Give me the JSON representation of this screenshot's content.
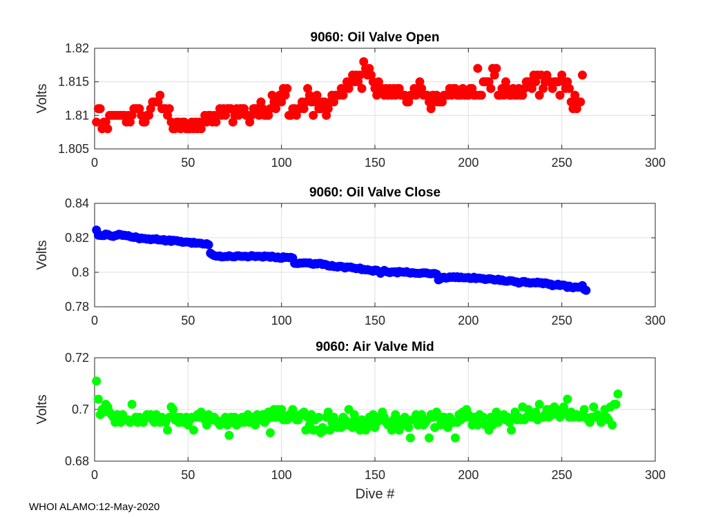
{
  "footer": "WHOI ALAMO:12-May-2020",
  "chart_data": [
    {
      "type": "scatter",
      "title": "9060: Oil Valve Open",
      "ylabel": "Volts",
      "xlabel": "",
      "xlim": [
        0,
        300
      ],
      "ylim": [
        1.805,
        1.82
      ],
      "xticks": [
        0,
        50,
        100,
        150,
        200,
        250,
        300
      ],
      "yticks": [
        1.805,
        1.81,
        1.815,
        1.82
      ],
      "ytick_labels": [
        "1.805",
        "1.81",
        "1.815",
        "1.82"
      ],
      "color": "#ff0000",
      "series": [
        {
          "name": "Oil Valve Open",
          "y": [
            1.809,
            1.811,
            1.811,
            1.808,
            1.809,
            1.809,
            1.808,
            1.81,
            1.81,
            1.81,
            1.81,
            1.81,
            1.81,
            1.81,
            1.81,
            1.81,
            1.809,
            1.81,
            1.809,
            1.81,
            1.811,
            1.811,
            1.811,
            1.811,
            1.81,
            1.809,
            1.809,
            1.81,
            1.81,
            1.811,
            1.812,
            1.812,
            1.812,
            1.812,
            1.813,
            1.811,
            1.811,
            1.811,
            1.81,
            1.811,
            1.809,
            1.808,
            1.808,
            1.809,
            1.809,
            1.808,
            1.809,
            1.809,
            1.808,
            1.808,
            1.808,
            1.809,
            1.808,
            1.809,
            1.808,
            1.809,
            1.808,
            1.809,
            1.81,
            1.809,
            1.81,
            1.81,
            1.809,
            1.81,
            1.809,
            1.81,
            1.811,
            1.81,
            1.811,
            1.81,
            1.811,
            1.811,
            1.811,
            1.809,
            1.81,
            1.811,
            1.81,
            1.811,
            1.811,
            1.811,
            1.81,
            1.81,
            1.809,
            1.81,
            1.811,
            1.811,
            1.811,
            1.81,
            1.812,
            1.811,
            1.81,
            1.81,
            1.81,
            1.811,
            1.813,
            1.812,
            1.811,
            1.812,
            1.813,
            1.812,
            1.814,
            1.813,
            1.814,
            1.81,
            1.81,
            1.811,
            1.811,
            1.81,
            1.811,
            1.811,
            1.812,
            1.811,
            1.812,
            1.814,
            1.813,
            1.812,
            1.81,
            1.812,
            1.813,
            1.811,
            1.811,
            1.812,
            1.812,
            1.81,
            1.811,
            1.812,
            1.813,
            1.812,
            1.813,
            1.813,
            1.813,
            1.814,
            1.813,
            1.814,
            1.815,
            1.814,
            1.815,
            1.816,
            1.815,
            1.816,
            1.815,
            1.816,
            1.814,
            1.818,
            1.817,
            1.816,
            1.817,
            1.816,
            1.815,
            1.814,
            1.813,
            1.815,
            1.814,
            1.814,
            1.813,
            1.814,
            1.813,
            1.814,
            1.813,
            1.814,
            1.813,
            1.814,
            1.814,
            1.813,
            1.813,
            1.813,
            1.812,
            1.812,
            1.813,
            1.813,
            1.814,
            1.813,
            1.814,
            1.815,
            1.814,
            1.813,
            1.813,
            1.813,
            1.812,
            1.811,
            1.813,
            1.812,
            1.813,
            1.812,
            1.812,
            1.812,
            1.813,
            1.813,
            1.813,
            1.814,
            1.813,
            1.814,
            1.814,
            1.813,
            1.813,
            1.813,
            1.814,
            1.813,
            1.813,
            1.813,
            1.814,
            1.814,
            1.813,
            1.813,
            1.817,
            1.813,
            1.813,
            1.815,
            1.815,
            1.815,
            1.815,
            1.814,
            1.817,
            1.816,
            1.817,
            1.813,
            1.813,
            1.814,
            1.813,
            1.815,
            1.814,
            1.813,
            1.813,
            1.814,
            1.813,
            1.813,
            1.814,
            1.813,
            1.813,
            1.814,
            1.815,
            1.815,
            1.815,
            1.814,
            1.816,
            1.815,
            1.816,
            1.813,
            1.816,
            1.814,
            1.815,
            1.816,
            1.815,
            1.815,
            1.814,
            1.815,
            1.815,
            1.815,
            1.813,
            1.816,
            1.815,
            1.814,
            1.815,
            1.814,
            1.812,
            1.811,
            1.813,
            1.811,
            1.812,
            1.812,
            1.816
          ]
        }
      ]
    },
    {
      "type": "scatter",
      "title": "9060: Oil Valve Close",
      "ylabel": "Volts",
      "xlabel": "",
      "xlim": [
        0,
        300
      ],
      "ylim": [
        0.78,
        0.84
      ],
      "xticks": [
        0,
        50,
        100,
        150,
        200,
        250,
        300
      ],
      "yticks": [
        0.78,
        0.8,
        0.82,
        0.84
      ],
      "ytick_labels": [
        "0.78",
        "0.8",
        "0.82",
        "0.84"
      ],
      "color": "#0000ff",
      "series": [
        {
          "name": "Oil Valve Close",
          "y": [
            0.8245,
            0.8215,
            0.8214,
            0.8213,
            0.8213,
            0.8222,
            0.822,
            0.8214,
            0.821,
            0.8208,
            0.8213,
            0.8215,
            0.8221,
            0.8219,
            0.8214,
            0.8215,
            0.8212,
            0.8213,
            0.8207,
            0.8204,
            0.8202,
            0.8206,
            0.82,
            0.8194,
            0.8199,
            0.8196,
            0.8196,
            0.8192,
            0.8194,
            0.8189,
            0.8193,
            0.8192,
            0.8195,
            0.8188,
            0.8188,
            0.8187,
            0.819,
            0.8181,
            0.8185,
            0.8188,
            0.8179,
            0.8186,
            0.8184,
            0.8184,
            0.8179,
            0.818,
            0.8174,
            0.8175,
            0.8176,
            0.8175,
            0.8174,
            0.8168,
            0.8174,
            0.8168,
            0.8169,
            0.8169,
            0.8168,
            0.8164,
            0.8164,
            0.8166,
            0.816,
            0.8111,
            0.8103,
            0.8097,
            0.8094,
            0.8093,
            0.8095,
            0.8089,
            0.809,
            0.8092,
            0.8091,
            0.8096,
            0.8092,
            0.809,
            0.809,
            0.8095,
            0.8096,
            0.8093,
            0.8092,
            0.8093,
            0.8093,
            0.8089,
            0.8092,
            0.8097,
            0.8094,
            0.8091,
            0.8093,
            0.8093,
            0.8092,
            0.8088,
            0.8095,
            0.8092,
            0.8093,
            0.8087,
            0.8094,
            0.8088,
            0.8084,
            0.8089,
            0.8082,
            0.8081,
            0.809,
            0.8086,
            0.8087,
            0.8085,
            0.8087,
            0.8083,
            0.8052,
            0.8051,
            0.8051,
            0.8054,
            0.8053,
            0.8055,
            0.8055,
            0.8054,
            0.8055,
            0.8049,
            0.8046,
            0.8051,
            0.8048,
            0.8052,
            0.8052,
            0.8045,
            0.8047,
            0.8044,
            0.8037,
            0.8035,
            0.804,
            0.8033,
            0.8033,
            0.803,
            0.8035,
            0.8034,
            0.8031,
            0.8025,
            0.8031,
            0.803,
            0.8031,
            0.8026,
            0.8024,
            0.8021,
            0.8022,
            0.8025,
            0.8015,
            0.8017,
            0.8014,
            0.8016,
            0.8012,
            0.801,
            0.8006,
            0.8013,
            0.8012,
            0.8005,
            0.7994,
            0.8004,
            0.8011,
            0.8004,
            0.8001,
            0.7998,
            0.8002,
            0.8002,
            0.8003,
            0.7996,
            0.8005,
            0.8002,
            0.8001,
            0.8,
            0.8004,
            0.7998,
            0.7995,
            0.7998,
            0.7996,
            0.7994,
            0.7994,
            0.7993,
            0.7996,
            0.7997,
            0.7997,
            0.7995,
            0.7992,
            0.7991,
            0.7993,
            0.7993,
            0.7989,
            0.7956,
            0.7962,
            0.797,
            0.7971,
            0.7966,
            0.7968,
            0.7973,
            0.797,
            0.7974,
            0.7969,
            0.7974,
            0.7968,
            0.7972,
            0.7968,
            0.7968,
            0.7968,
            0.797,
            0.7964,
            0.7965,
            0.7971,
            0.7963,
            0.7966,
            0.7966,
            0.7964,
            0.7963,
            0.7958,
            0.796,
            0.7963,
            0.7962,
            0.7959,
            0.7955,
            0.7956,
            0.796,
            0.7952,
            0.7956,
            0.795,
            0.7948,
            0.7948,
            0.7952,
            0.7951,
            0.7949,
            0.7944,
            0.7944,
            0.7937,
            0.7941,
            0.7946,
            0.7947,
            0.794,
            0.7941,
            0.7937,
            0.7939,
            0.794,
            0.7938,
            0.7943,
            0.7938,
            0.794,
            0.7933,
            0.7939,
            0.7937,
            0.793,
            0.7932,
            0.7922,
            0.7926,
            0.7926,
            0.7931,
            0.7923,
            0.7926,
            0.7926,
            0.7922,
            0.7912,
            0.792,
            0.7913,
            0.791,
            0.7915,
            0.7914,
            0.7913,
            0.7915,
            0.7923,
            0.7901,
            0.7895
          ]
        }
      ]
    },
    {
      "type": "scatter",
      "title": "9060: Air Valve Mid",
      "ylabel": "Volts",
      "xlabel": "Dive #",
      "xlim": [
        0,
        300
      ],
      "ylim": [
        0.68,
        0.72
      ],
      "xticks": [
        0,
        50,
        100,
        150,
        200,
        250,
        300
      ],
      "yticks": [
        0.68,
        0.7,
        0.72
      ],
      "ytick_labels": [
        "0.68",
        "0.7",
        "0.72"
      ],
      "color": "#00ff00",
      "series": [
        {
          "name": "Air Valve Mid",
          "y": [
            0.711,
            0.704,
            0.698,
            0.7,
            0.699,
            0.702,
            0.701,
            0.699,
            0.698,
            0.697,
            0.695,
            0.698,
            0.697,
            0.695,
            0.698,
            0.696,
            0.696,
            0.696,
            0.695,
            0.702,
            0.696,
            0.697,
            0.695,
            0.697,
            0.696,
            0.695,
            0.697,
            0.698,
            0.697,
            0.698,
            0.696,
            0.695,
            0.698,
            0.697,
            0.695,
            0.697,
            0.696,
            0.695,
            0.692,
            0.697,
            0.701,
            0.7,
            0.696,
            0.697,
            0.695,
            0.697,
            0.695,
            0.696,
            0.697,
            0.694,
            0.696,
            0.697,
            0.692,
            0.697,
            0.698,
            0.697,
            0.699,
            0.698,
            0.696,
            0.694,
            0.698,
            0.697,
            0.696,
            0.697,
            0.696,
            0.695,
            0.694,
            0.695,
            0.696,
            0.697,
            0.694,
            0.69,
            0.697,
            0.695,
            0.697,
            0.694,
            0.696,
            0.695,
            0.697,
            0.695,
            0.697,
            0.698,
            0.695,
            0.696,
            0.697,
            0.694,
            0.698,
            0.697,
            0.696,
            0.698,
            0.695,
            0.696,
            0.699,
            0.691,
            0.697,
            0.7,
            0.697,
            0.7,
            0.697,
            0.7,
            0.696,
            0.697,
            0.696,
            0.698,
            0.697,
            0.7,
            0.698,
            0.696,
            0.696,
            0.698,
            0.698,
            0.699,
            0.692,
            0.697,
            0.694,
            0.698,
            0.692,
            0.696,
            0.692,
            0.697,
            0.691,
            0.693,
            0.692,
            0.697,
            0.699,
            0.692,
            0.695,
            0.697,
            0.694,
            0.693,
            0.695,
            0.693,
            0.697,
            0.696,
            0.694,
            0.7,
            0.695,
            0.693,
            0.698,
            0.696,
            0.694,
            0.692,
            0.696,
            0.695,
            0.692,
            0.693,
            0.697,
            0.695,
            0.698,
            0.693,
            0.695,
            0.697,
            0.696,
            0.699,
            0.697,
            0.695,
            0.694,
            0.695,
            0.692,
            0.696,
            0.698,
            0.694,
            0.692,
            0.696,
            0.694,
            0.697,
            0.694,
            0.693,
            0.689,
            0.696,
            0.696,
            0.698,
            0.694,
            0.695,
            0.698,
            0.694,
            0.695,
            0.696,
            0.689,
            0.698,
            0.697,
            0.693,
            0.699,
            0.697,
            0.694,
            0.697,
            0.697,
            0.694,
            0.693,
            0.697,
            0.696,
            0.695,
            0.689,
            0.695,
            0.698,
            0.696,
            0.699,
            0.697,
            0.7,
            0.698,
            0.697,
            0.694,
            0.697,
            0.696,
            0.694,
            0.698,
            0.697,
            0.697,
            0.694,
            0.694,
            0.692,
            0.697,
            0.694,
            0.697,
            0.699,
            0.695,
            0.697,
            0.697,
            0.698,
            0.696,
            0.697,
            0.695,
            0.692,
            0.697,
            0.699,
            0.696,
            0.697,
            0.696,
            0.701,
            0.696,
            0.697,
            0.7,
            0.698,
            0.697,
            0.697,
            0.699,
            0.696,
            0.702,
            0.697,
            0.697,
            0.698,
            0.7,
            0.697,
            0.7,
            0.698,
            0.701,
            0.7,
            0.698,
            0.697,
            0.698,
            0.701,
            0.699,
            0.704,
            0.697,
            0.699,
            0.697,
            0.698,
            0.698,
            0.697,
            0.697,
            0.698,
            0.7,
            0.697,
            0.696,
            0.695,
            0.697,
            0.701,
            0.697,
            0.698,
            0.697,
            0.695,
            0.697,
            0.7,
            0.697,
            0.696,
            0.701,
            0.694,
            0.702,
            0.702,
            0.706
          ]
        }
      ]
    }
  ]
}
